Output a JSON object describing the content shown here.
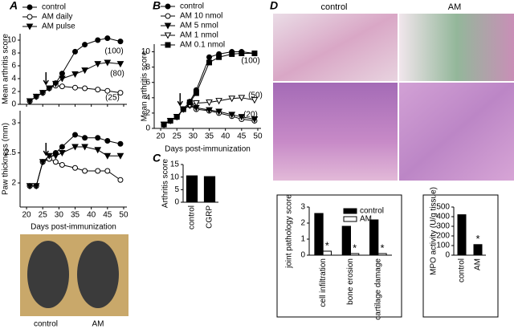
{
  "panel_labels": [
    "A",
    "B",
    "C",
    "D"
  ],
  "photo_labels": {
    "mice": [
      "control",
      "AM"
    ],
    "histology": [
      "control",
      "AM"
    ]
  },
  "chart_data": [
    {
      "type": "line",
      "ylabel": "Mean arthritis score",
      "legend": "top-left",
      "xtick_labels": false,
      "x": [
        21,
        23,
        25,
        27,
        29,
        31,
        35,
        38,
        42,
        45,
        49
      ],
      "xlim": [
        18,
        51
      ],
      "xticks": [
        20,
        25,
        30,
        35,
        40,
        45,
        50
      ],
      "ylim": [
        0,
        11
      ],
      "yticks": [
        0,
        2,
        4,
        6,
        8,
        10
      ],
      "series": [
        {
          "name": "control",
          "color": "#000000",
          "marker": "circle",
          "values": [
            0.5,
            1.2,
            1.8,
            2.5,
            3.3,
            4.8,
            8.2,
            9.3,
            10.0,
            10.3,
            9.8
          ]
        },
        {
          "name": "AM daily",
          "color": "#000000",
          "marker": "circle-open",
          "values": [
            0.5,
            1.2,
            1.8,
            2.5,
            2.9,
            2.8,
            2.6,
            2.5,
            2.3,
            2.1,
            1.8
          ]
        },
        {
          "name": "AM pulse",
          "color": "#000000",
          "marker": "triangle",
          "values": [
            0.5,
            1.2,
            1.8,
            2.5,
            3.2,
            4.0,
            4.7,
            5.3,
            6.3,
            6.5,
            6.3
          ]
        }
      ],
      "annotations": [
        "(100)",
        "(80)",
        "(25)"
      ]
    },
    {
      "type": "line",
      "ylabel": "Paw thickness (mm)",
      "xlabel": "Days post-immunization",
      "xtick_labels": true,
      "x": [
        21,
        23,
        25,
        27,
        29,
        31,
        35,
        38,
        42,
        45,
        49
      ],
      "xlim": [
        18,
        51
      ],
      "xticks": [
        20,
        25,
        30,
        35,
        40,
        45,
        50
      ],
      "ylim": [
        1.6,
        3.2
      ],
      "yticks": [
        2,
        2.5,
        3
      ],
      "series": [
        {
          "color": "#000000",
          "marker": "circle",
          "values": [
            1.95,
            1.95,
            2.35,
            2.4,
            2.5,
            2.6,
            2.8,
            2.75,
            2.75,
            2.7,
            2.65
          ]
        },
        {
          "color": "#000000",
          "marker": "circle-open",
          "values": [
            1.95,
            1.95,
            2.35,
            2.4,
            2.35,
            2.3,
            2.25,
            2.2,
            2.2,
            2.2,
            2.05
          ]
        },
        {
          "color": "#000000",
          "marker": "triangle",
          "values": [
            1.95,
            1.95,
            2.35,
            2.45,
            2.45,
            2.5,
            2.6,
            2.6,
            2.55,
            2.45,
            2.45
          ]
        }
      ]
    },
    {
      "type": "line",
      "ylabel": "Mean arthritis score",
      "xlabel": "Days post-immunization",
      "legend": "top-left",
      "xtick_labels": true,
      "x": [
        21,
        23,
        25,
        27,
        29,
        31,
        35,
        38,
        42,
        45,
        49
      ],
      "xlim": [
        18,
        51
      ],
      "xticks": [
        20,
        25,
        30,
        35,
        40,
        45,
        50
      ],
      "ylim": [
        0,
        11
      ],
      "yticks": [
        0,
        2,
        4,
        6,
        8,
        10
      ],
      "series": [
        {
          "name": "control",
          "color": "#000000",
          "marker": "circle",
          "values": [
            0.5,
            1.0,
            1.5,
            2.5,
            3.5,
            5.0,
            9.3,
            9.7,
            10.0,
            10.0,
            9.8
          ]
        },
        {
          "name": "AM 10 nmol",
          "color": "#000000",
          "marker": "circle-open",
          "values": [
            0.5,
            1.0,
            1.5,
            2.5,
            3.0,
            2.5,
            2.3,
            2.0,
            1.6,
            1.2,
            1.0
          ]
        },
        {
          "name": "AM 5 nmol",
          "color": "#000000",
          "marker": "triangle",
          "values": [
            0.5,
            1.0,
            1.5,
            2.5,
            3.0,
            2.7,
            2.4,
            2.2,
            1.8,
            1.5,
            1.2
          ]
        },
        {
          "name": "AM 1 nmol",
          "color": "#000000",
          "marker": "triangle-open",
          "values": [
            0.5,
            1.0,
            1.5,
            2.5,
            3.0,
            3.3,
            3.4,
            3.6,
            3.9,
            4.0,
            3.7
          ]
        },
        {
          "name": "AM 0.1 nmol",
          "color": "#000000",
          "marker": "square",
          "values": [
            0.5,
            1.0,
            1.5,
            2.5,
            3.4,
            4.6,
            8.6,
            9.3,
            9.7,
            9.8,
            9.8
          ]
        }
      ],
      "annotations": [
        "(100)",
        "(50)",
        "(20)"
      ]
    },
    {
      "type": "bar",
      "ylabel": "Arthritis score",
      "categories": [
        "control",
        "CGRP"
      ],
      "values": [
        10.5,
        10.2
      ],
      "color": "#000000",
      "ylim": [
        0,
        15
      ],
      "yticks": [
        0,
        5,
        10,
        15
      ]
    },
    {
      "type": "bar",
      "ylabel": "joint pathology score",
      "legend": "top-right",
      "categories": [
        "cell infiltration",
        "bone erosion",
        "cartilage damage"
      ],
      "series": [
        {
          "name": "control",
          "color": "#000000",
          "values": [
            2.6,
            1.8,
            2.2
          ]
        },
        {
          "name": "AM",
          "color": "#ffffff",
          "values": [
            0.25,
            0.1,
            0.1
          ]
        }
      ],
      "ylim": [
        0,
        3
      ],
      "yticks": [
        0,
        1,
        2,
        3
      ],
      "annotations": [
        "*",
        "*",
        "*"
      ]
    },
    {
      "type": "bar",
      "ylabel": "MPO activity (U/g tissue)",
      "categories": [
        "control",
        "AM"
      ],
      "values": [
        420,
        110
      ],
      "color": "#000000",
      "ylim": [
        0,
        500
      ],
      "yticks": [
        0,
        100,
        200,
        300,
        400,
        500
      ],
      "annotations": [
        "*"
      ]
    }
  ]
}
